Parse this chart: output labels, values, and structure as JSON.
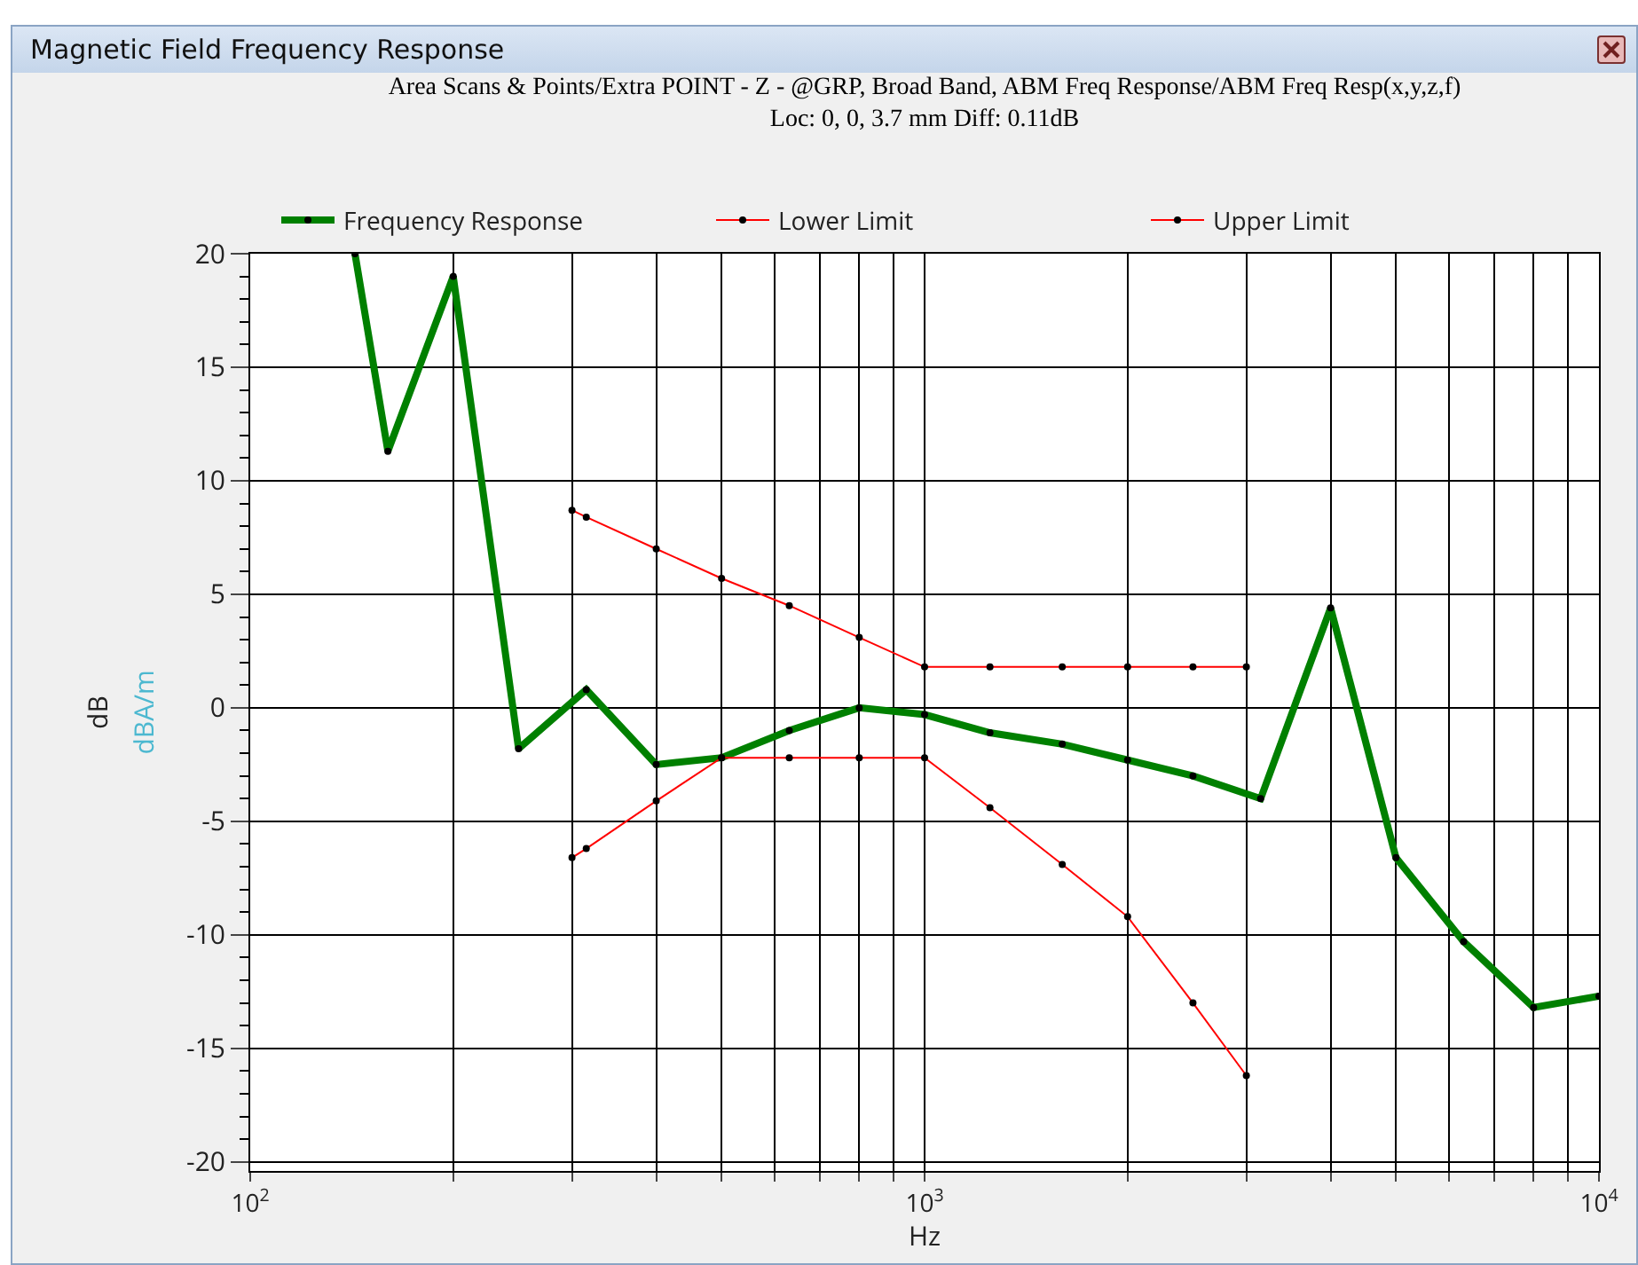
{
  "chart_data": {
    "type": "line",
    "title": "Magnetic Field Frequency Response",
    "subtitle": "Area Scans & Points/Extra POINT - Z - @GRP, Broad Band, ABM Freq Response/ABM Freq Resp(x,y,z,f)\nLoc: 0, 0, 3.7 mm Diff: 0.11dB",
    "xlabel": "Hz",
    "ylabel": "dB",
    "annotations": [
      "dBA/m"
    ],
    "log": "x",
    "grid": true,
    "legend": "top",
    "marker": "circle",
    "line_style": "solid",
    "xlim": [
      100,
      10000
    ],
    "ylim": [
      -20.4,
      20
    ],
    "xticks": [
      {
        "value": 100,
        "label": "10$^{2}$"
      },
      {
        "value": 200,
        "label": null
      },
      {
        "value": 300,
        "label": null
      },
      {
        "value": 400,
        "label": null
      },
      {
        "value": 500,
        "label": null
      },
      {
        "value": 600,
        "label": null
      },
      {
        "value": 700,
        "label": null
      },
      {
        "value": 800,
        "label": null
      },
      {
        "value": 900,
        "label": null
      },
      {
        "value": 1000,
        "label": "10$^{3}$"
      },
      {
        "value": 2000,
        "label": null
      },
      {
        "value": 3000,
        "label": null
      },
      {
        "value": 4000,
        "label": null
      },
      {
        "value": 5000,
        "label": null
      },
      {
        "value": 6000,
        "label": null
      },
      {
        "value": 7000,
        "label": null
      },
      {
        "value": 8000,
        "label": null
      },
      {
        "value": 9000,
        "label": null
      },
      {
        "value": 10000,
        "label": "10$^{4}$"
      }
    ],
    "yticks": [
      -20,
      -15,
      -10,
      -5,
      0,
      5,
      10,
      15,
      20
    ],
    "series": [
      {
        "name": "Frequency Response",
        "color": "#008000",
        "x": [
          143,
          160,
          200,
          250,
          315,
          400,
          500,
          630,
          800,
          1000,
          1250,
          1600,
          2000,
          2500,
          3150,
          4000,
          5000,
          6300,
          8000,
          10000
        ],
        "values": [
          20,
          11.3,
          19,
          -1.8,
          0.8,
          -2.5,
          -2.2,
          -1.0,
          0.0,
          -0.3,
          -1.1,
          -1.6,
          -2.3,
          -3.0,
          -4.0,
          4.4,
          -6.6,
          -10.3,
          -13.2,
          -12.7
        ]
      },
      {
        "name": "Lower Limit",
        "color": "#ff0000",
        "x": [
          300,
          315,
          400,
          500,
          630,
          800,
          1000,
          1250,
          1600,
          2000,
          2500,
          3000
        ],
        "values": [
          -6.6,
          -6.2,
          -4.1,
          -2.2,
          -2.2,
          -2.2,
          -2.2,
          -4.4,
          -6.9,
          -9.2,
          -13.0,
          -16.2
        ]
      },
      {
        "name": "Upper Limit",
        "color": "#ff0000",
        "x": [
          300,
          315,
          400,
          500,
          630,
          800,
          1000,
          1250,
          1600,
          2000,
          2500,
          3000
        ],
        "values": [
          8.7,
          8.4,
          7.0,
          5.7,
          4.5,
          3.1,
          1.8,
          1.8,
          1.8,
          1.8,
          1.8,
          1.8
        ]
      }
    ]
  }
}
